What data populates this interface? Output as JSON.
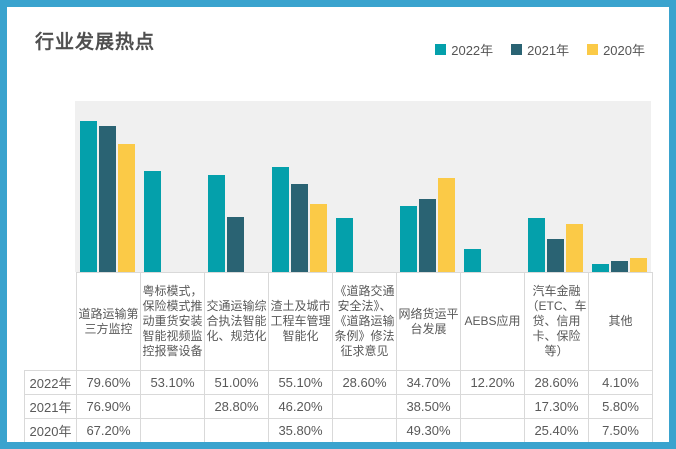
{
  "header": {
    "title": "行业发展热点"
  },
  "colors": {
    "frame_border": "#3AA3CE",
    "plot_background": "#F0F0F0",
    "table_border": "#D9D9D9",
    "text": "#595959",
    "series_2022": "#04A0AB",
    "series_2021": "#2A6373",
    "series_2020": "#FBCA47"
  },
  "chart_data": {
    "type": "bar",
    "title": "行业发展热点",
    "categories": [
      "道路运输第三方监控",
      "粤标模式，保险模式推动重货安装智能视频监控报警设备",
      "交通运输综合执法智能化、规范化",
      "渣土及城市工程车管理智能化",
      "《道路交通安全法》、《道路运输条例》修法征求意见",
      "网络货运平台发展",
      "AEBS应用",
      "汽车金融（ETC、车贷、信用卡、保险等）",
      "其他"
    ],
    "series": [
      {
        "name": "2022年",
        "color": "#04A0AB",
        "values": [
          79.6,
          53.1,
          51.0,
          55.1,
          28.6,
          34.7,
          12.2,
          28.6,
          4.1
        ]
      },
      {
        "name": "2021年",
        "color": "#2A6373",
        "values": [
          76.9,
          null,
          28.8,
          46.2,
          null,
          38.5,
          null,
          17.3,
          5.8
        ]
      },
      {
        "name": "2020年",
        "color": "#FBCA47",
        "values": [
          67.2,
          null,
          null,
          35.8,
          null,
          49.3,
          null,
          25.4,
          7.5
        ]
      }
    ],
    "table_values": [
      [
        "79.60%",
        "53.10%",
        "51.00%",
        "55.10%",
        "28.60%",
        "34.70%",
        "12.20%",
        "28.60%",
        "4.10%"
      ],
      [
        "76.90%",
        "",
        "28.80%",
        "46.20%",
        "",
        "38.50%",
        "",
        "17.30%",
        "5.80%"
      ],
      [
        "67.20%",
        "",
        "",
        "35.80%",
        "",
        "49.30%",
        "",
        "25.40%",
        "7.50%"
      ]
    ],
    "value_format": "percent",
    "xlabel": "",
    "ylabel": "",
    "ylim": [
      0,
      90
    ],
    "grid": false,
    "y_axis_labels_visible": false,
    "legend_position": "top-right"
  }
}
